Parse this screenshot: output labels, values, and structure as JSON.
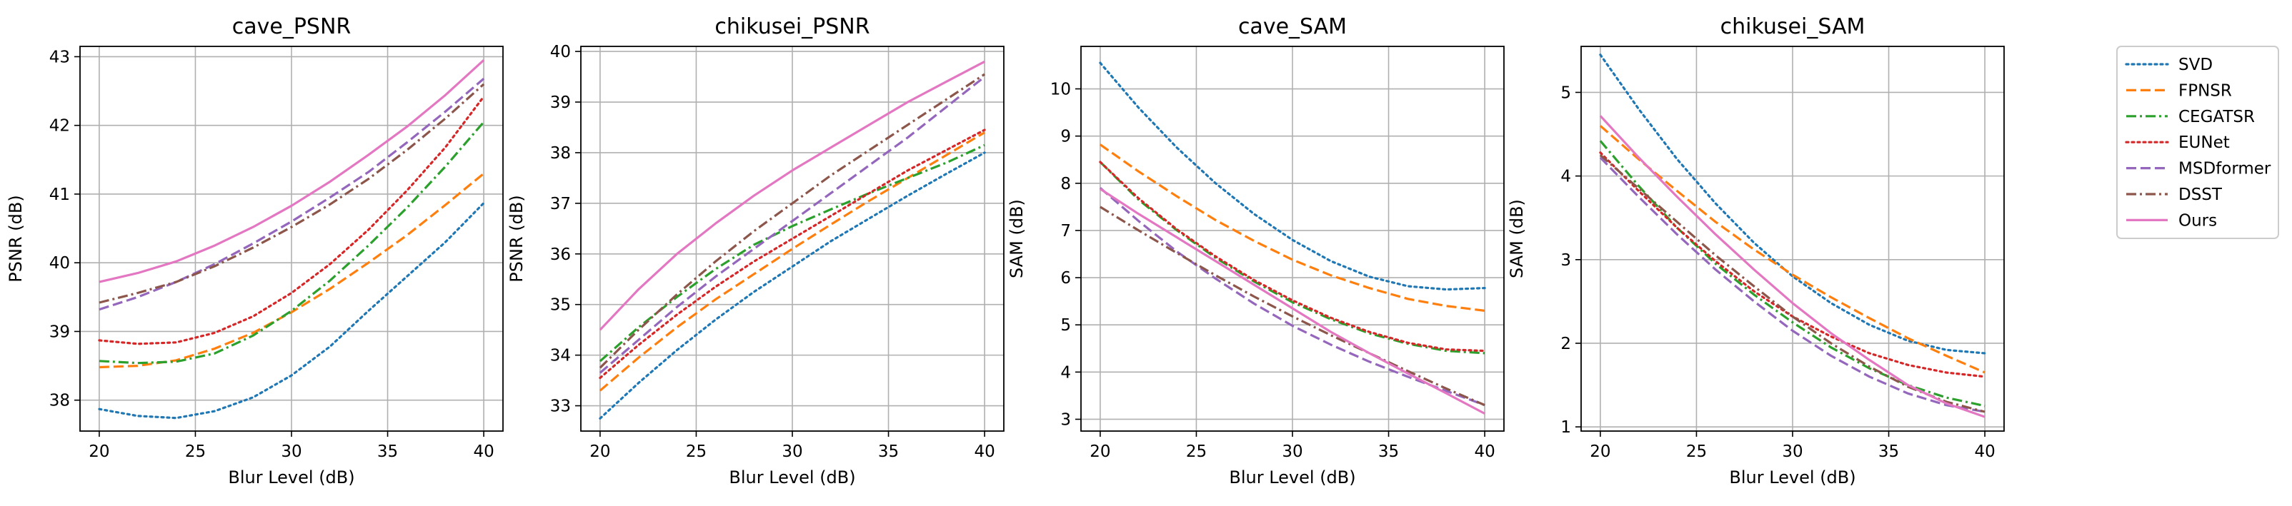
{
  "figure": {
    "legend_position": "right"
  },
  "series_styles": [
    {
      "name": "SVD",
      "color": "#1f77b4",
      "dash": "dotted"
    },
    {
      "name": "FPNSR",
      "color": "#ff7f0e",
      "dash": "dashed"
    },
    {
      "name": "CEGATSR",
      "color": "#2ca02c",
      "dash": "dashdot"
    },
    {
      "name": "EUNet",
      "color": "#d62728",
      "dash": "dotted"
    },
    {
      "name": "MSDformer",
      "color": "#9467bd",
      "dash": "dashed"
    },
    {
      "name": "DSST",
      "color": "#8c564b",
      "dash": "dashdot"
    },
    {
      "name": "Ours",
      "color": "#e377c2",
      "dash": "solid"
    }
  ],
  "chart_data": [
    {
      "type": "line",
      "title": "cave_PSNR",
      "xlabel": "Blur Level (dB)",
      "ylabel": "PSNR (dB)",
      "grid": true,
      "xlim": [
        19,
        41
      ],
      "ylim": [
        37.55,
        43.15
      ],
      "xticks": [
        20,
        25,
        30,
        35,
        40
      ],
      "yticks": [
        38,
        39,
        40,
        41,
        42,
        43
      ],
      "x": [
        20,
        22,
        24,
        26,
        28,
        30,
        32,
        34,
        36,
        38,
        40
      ],
      "series": [
        {
          "name": "SVD",
          "values": [
            37.87,
            37.77,
            37.74,
            37.84,
            38.04,
            38.36,
            38.78,
            39.3,
            39.8,
            40.3,
            40.87
          ]
        },
        {
          "name": "FPNSR",
          "values": [
            38.48,
            38.5,
            38.58,
            38.75,
            38.98,
            39.28,
            39.62,
            40.0,
            40.4,
            40.84,
            41.3
          ]
        },
        {
          "name": "CEGATSR",
          "values": [
            38.57,
            38.54,
            38.56,
            38.68,
            38.94,
            39.3,
            39.74,
            40.25,
            40.8,
            41.4,
            42.05
          ]
        },
        {
          "name": "EUNet",
          "values": [
            38.87,
            38.82,
            38.84,
            38.98,
            39.22,
            39.56,
            39.98,
            40.48,
            41.05,
            41.68,
            42.42
          ]
        },
        {
          "name": "MSDformer",
          "values": [
            39.32,
            39.5,
            39.72,
            39.98,
            40.28,
            40.6,
            40.95,
            41.32,
            41.75,
            42.2,
            42.68
          ]
        },
        {
          "name": "DSST",
          "values": [
            39.42,
            39.56,
            39.72,
            39.95,
            40.22,
            40.52,
            40.85,
            41.22,
            41.64,
            42.1,
            42.6
          ]
        },
        {
          "name": "Ours",
          "values": [
            39.72,
            39.85,
            40.02,
            40.25,
            40.52,
            40.83,
            41.18,
            41.57,
            41.98,
            42.44,
            42.95
          ]
        }
      ]
    },
    {
      "type": "line",
      "title": "chikusei_PSNR",
      "xlabel": "Blur Level (dB)",
      "ylabel": "PSNR (dB)",
      "grid": true,
      "xlim": [
        19,
        41
      ],
      "ylim": [
        32.5,
        40.1
      ],
      "xticks": [
        20,
        25,
        30,
        35,
        40
      ],
      "yticks": [
        33,
        34,
        35,
        36,
        37,
        38,
        39,
        40
      ],
      "x": [
        20,
        22,
        24,
        26,
        28,
        30,
        32,
        34,
        36,
        38,
        40
      ],
      "series": [
        {
          "name": "SVD",
          "values": [
            32.75,
            33.45,
            34.1,
            34.7,
            35.25,
            35.75,
            36.25,
            36.7,
            37.15,
            37.58,
            38.0
          ]
        },
        {
          "name": "FPNSR",
          "values": [
            33.3,
            33.95,
            34.55,
            35.1,
            35.6,
            36.1,
            36.58,
            37.05,
            37.5,
            37.95,
            38.4
          ]
        },
        {
          "name": "CEGATSR",
          "values": [
            33.88,
            34.55,
            35.15,
            35.7,
            36.18,
            36.55,
            36.88,
            37.2,
            37.5,
            37.8,
            38.15
          ]
        },
        {
          "name": "EUNet",
          "values": [
            33.55,
            34.2,
            34.8,
            35.35,
            35.85,
            36.3,
            36.75,
            37.2,
            37.65,
            38.05,
            38.45
          ]
        },
        {
          "name": "MSDformer",
          "values": [
            33.65,
            34.3,
            34.95,
            35.55,
            36.1,
            36.65,
            37.2,
            37.75,
            38.3,
            38.9,
            39.5
          ]
        },
        {
          "name": "DSST",
          "values": [
            33.75,
            34.5,
            35.2,
            35.85,
            36.45,
            37.0,
            37.55,
            38.05,
            38.55,
            39.05,
            39.55
          ]
        },
        {
          "name": "Ours",
          "values": [
            34.5,
            35.3,
            36.0,
            36.6,
            37.15,
            37.65,
            38.1,
            38.55,
            39.0,
            39.4,
            39.8
          ]
        }
      ]
    },
    {
      "type": "line",
      "title": "cave_SAM",
      "xlabel": "Blur Level (dB)",
      "ylabel": "SAM (dB)",
      "grid": true,
      "xlim": [
        19,
        41
      ],
      "ylim": [
        2.75,
        10.9
      ],
      "xticks": [
        20,
        25,
        30,
        35,
        40
      ],
      "yticks": [
        3,
        4,
        5,
        6,
        7,
        8,
        9,
        10
      ],
      "x": [
        20,
        22,
        24,
        26,
        28,
        30,
        32,
        34,
        36,
        38,
        40
      ],
      "series": [
        {
          "name": "SVD",
          "values": [
            10.55,
            9.6,
            8.75,
            8.0,
            7.35,
            6.8,
            6.35,
            6.02,
            5.82,
            5.75,
            5.78
          ]
        },
        {
          "name": "FPNSR",
          "values": [
            8.82,
            8.25,
            7.72,
            7.22,
            6.78,
            6.38,
            6.05,
            5.78,
            5.55,
            5.4,
            5.3
          ]
        },
        {
          "name": "CEGATSR",
          "values": [
            8.45,
            7.65,
            7.0,
            6.42,
            5.92,
            5.48,
            5.12,
            4.82,
            4.6,
            4.45,
            4.4
          ]
        },
        {
          "name": "EUNet",
          "values": [
            8.45,
            7.68,
            7.02,
            6.45,
            5.95,
            5.52,
            5.15,
            4.85,
            4.62,
            4.48,
            4.45
          ]
        },
        {
          "name": "MSDformer",
          "values": [
            7.9,
            7.2,
            6.55,
            5.98,
            5.45,
            4.98,
            4.58,
            4.22,
            3.9,
            3.6,
            3.3
          ]
        },
        {
          "name": "DSST",
          "values": [
            7.5,
            7.0,
            6.52,
            6.05,
            5.6,
            5.18,
            4.78,
            4.4,
            4.02,
            3.65,
            3.3
          ]
        },
        {
          "name": "Ours",
          "values": [
            7.88,
            7.35,
            6.85,
            6.35,
            5.85,
            5.35,
            4.85,
            4.4,
            3.97,
            3.55,
            3.12
          ]
        }
      ]
    },
    {
      "type": "line",
      "title": "chikusei_SAM",
      "xlabel": "Blur Level (dB)",
      "ylabel": "SAM (dB)",
      "grid": true,
      "xlim": [
        19,
        41
      ],
      "ylim": [
        0.95,
        5.55
      ],
      "xticks": [
        20,
        25,
        30,
        35,
        40
      ],
      "yticks": [
        1,
        2,
        3,
        4,
        5
      ],
      "x": [
        20,
        22,
        24,
        26,
        28,
        30,
        32,
        34,
        36,
        38,
        40
      ],
      "series": [
        {
          "name": "SVD",
          "values": [
            5.45,
            4.8,
            4.2,
            3.67,
            3.2,
            2.8,
            2.48,
            2.22,
            2.03,
            1.92,
            1.88
          ]
        },
        {
          "name": "FPNSR",
          "values": [
            4.6,
            4.2,
            3.82,
            3.45,
            3.12,
            2.82,
            2.55,
            2.3,
            2.06,
            1.85,
            1.65
          ]
        },
        {
          "name": "CEGATSR",
          "values": [
            4.42,
            3.88,
            3.38,
            2.95,
            2.58,
            2.25,
            1.95,
            1.7,
            1.5,
            1.35,
            1.25
          ]
        },
        {
          "name": "EUNet",
          "values": [
            4.28,
            3.82,
            3.38,
            2.98,
            2.62,
            2.32,
            2.08,
            1.88,
            1.74,
            1.65,
            1.6
          ]
        },
        {
          "name": "MSDformer",
          "values": [
            4.22,
            3.75,
            3.3,
            2.88,
            2.5,
            2.15,
            1.85,
            1.6,
            1.4,
            1.26,
            1.18
          ]
        },
        {
          "name": "DSST",
          "values": [
            4.25,
            3.85,
            3.45,
            3.05,
            2.68,
            2.32,
            2.0,
            1.72,
            1.48,
            1.3,
            1.18
          ]
        },
        {
          "name": "Ours",
          "values": [
            4.72,
            4.22,
            3.75,
            3.3,
            2.88,
            2.48,
            2.12,
            1.8,
            1.5,
            1.28,
            1.12
          ]
        }
      ]
    }
  ]
}
